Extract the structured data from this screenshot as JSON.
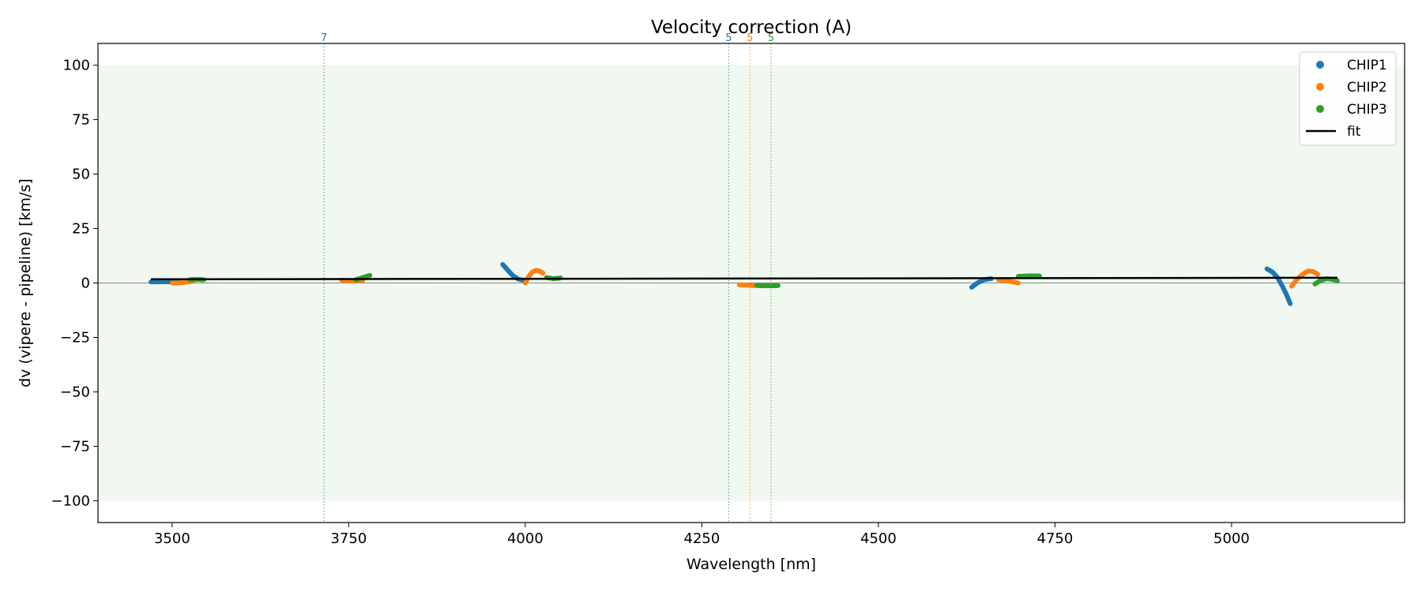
{
  "chart_data": {
    "type": "scatter",
    "title": "Velocity correction (A)",
    "xlabel": "Wavelength [nm]",
    "ylabel": "dv (vipere - pipeline) [km/s]",
    "xlim": [
      3395,
      5245
    ],
    "ylim": [
      -110,
      110
    ],
    "xticks": [
      3500,
      3750,
      4000,
      4250,
      4500,
      4750,
      5000
    ],
    "xtick_labels": [
      "3500",
      "3750",
      "4000",
      "4250",
      "4500",
      "4750",
      "5000"
    ],
    "yticks": [
      100,
      75,
      50,
      25,
      0,
      -25,
      -50,
      -75,
      -100
    ],
    "ytick_labels": [
      "100",
      "75",
      "50",
      "25",
      "0",
      "−25",
      "−50",
      "−75",
      "−100"
    ],
    "band": {
      "ymin": -100,
      "ymax": 100,
      "color": "#e8f4e8"
    },
    "zero_line": 0,
    "legend_position": "top-right",
    "grid": false,
    "series": [
      {
        "name": "CHIP1",
        "color": "#1f77b4",
        "segments": [
          {
            "x": [
              3470,
              3480,
              3490,
              3500,
              3510
            ],
            "y": [
              0.5,
              0.5,
              0.6,
              0.5,
              0.5
            ]
          },
          {
            "x": [
              3968,
              3975,
              3982,
              3990,
              4000
            ],
            "y": [
              8.5,
              6,
              3.5,
              1.8,
              1
            ]
          },
          {
            "x": [
              4632,
              4640,
              4650,
              4660
            ],
            "y": [
              -2,
              0,
              1.5,
              2
            ]
          },
          {
            "x": [
              5050,
              5058,
              5065,
              5072,
              5078,
              5083
            ],
            "y": [
              6.5,
              5,
              2.5,
              -1.5,
              -5.5,
              -9.5
            ]
          }
        ]
      },
      {
        "name": "CHIP2",
        "color": "#ff7f0e",
        "segments": [
          {
            "x": [
              3500,
              3510,
              3520,
              3530
            ],
            "y": [
              0,
              0,
              0.4,
              0.8
            ]
          },
          {
            "x": [
              3740,
              3750,
              3760,
              3770
            ],
            "y": [
              1.3,
              1,
              1,
              1.2
            ]
          },
          {
            "x": [
              4000,
              4005,
              4010,
              4015,
              4020,
              4025
            ],
            "y": [
              0,
              3,
              5,
              5.8,
              5.5,
              4.5
            ]
          },
          {
            "x": [
              4303,
              4315,
              4325
            ],
            "y": [
              -0.8,
              -1,
              -1.2
            ]
          },
          {
            "x": [
              4670,
              4680,
              4690,
              4698
            ],
            "y": [
              1.5,
              1,
              0.5,
              0
            ]
          },
          {
            "x": [
              5085,
              5092,
              5100,
              5108,
              5116,
              5122
            ],
            "y": [
              -1.5,
              1.5,
              3.8,
              5.5,
              5.2,
              4
            ]
          }
        ]
      },
      {
        "name": "CHIP3",
        "color": "#2ca02c",
        "segments": [
          {
            "x": [
              3525,
              3535,
              3545
            ],
            "y": [
              1.5,
              1.6,
              1.5
            ]
          },
          {
            "x": [
              3760,
              3770,
              3780
            ],
            "y": [
              1.5,
              2.5,
              3.5
            ]
          },
          {
            "x": [
              4030,
              4040,
              4050
            ],
            "y": [
              2.5,
              2,
              2.3
            ]
          },
          {
            "x": [
              4328,
              4340,
              4350,
              4358
            ],
            "y": [
              -1.2,
              -1.3,
              -1.3,
              -1.2
            ]
          },
          {
            "x": [
              4698,
              4708,
              4718,
              4728
            ],
            "y": [
              3,
              3.2,
              3.3,
              3.2
            ]
          },
          {
            "x": [
              5118,
              5125,
              5135,
              5145,
              5150
            ],
            "y": [
              -0.5,
              1,
              2,
              1.5,
              1
            ]
          }
        ]
      }
    ],
    "fit": {
      "name": "fit",
      "color": "#000000",
      "x": [
        3470,
        5150
      ],
      "y": [
        1.7,
        2.4
      ]
    },
    "vlines": [
      {
        "x": 3715,
        "label": "7",
        "color": "#1f77b4"
      },
      {
        "x": 4288,
        "label": "5",
        "color": "#1f77b4"
      },
      {
        "x": 4318,
        "label": "5",
        "color": "#ff7f0e"
      },
      {
        "x": 4348,
        "label": "5",
        "color": "#2ca02c"
      }
    ]
  }
}
